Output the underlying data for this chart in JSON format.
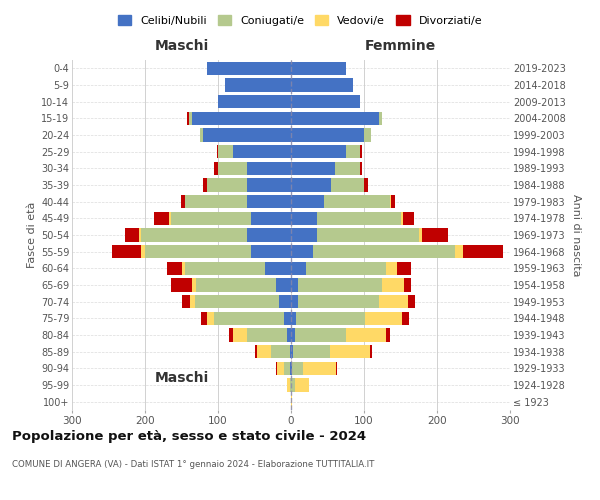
{
  "age_groups": [
    "100+",
    "95-99",
    "90-94",
    "85-89",
    "80-84",
    "75-79",
    "70-74",
    "65-69",
    "60-64",
    "55-59",
    "50-54",
    "45-49",
    "40-44",
    "35-39",
    "30-34",
    "25-29",
    "20-24",
    "15-19",
    "10-14",
    "5-9",
    "0-4"
  ],
  "birth_years": [
    "≤ 1923",
    "1924-1928",
    "1929-1933",
    "1934-1938",
    "1939-1943",
    "1944-1948",
    "1949-1953",
    "1954-1958",
    "1959-1963",
    "1964-1968",
    "1969-1973",
    "1974-1978",
    "1979-1983",
    "1984-1988",
    "1989-1993",
    "1994-1998",
    "1999-2003",
    "2004-2008",
    "2009-2013",
    "2014-2018",
    "2019-2023"
  ],
  "colors": {
    "celibe": "#4472c4",
    "coniugato": "#b5c98e",
    "vedovo": "#ffd966",
    "divorziato": "#c00000"
  },
  "maschi": {
    "celibe": [
      0,
      0,
      1,
      2,
      5,
      10,
      16,
      20,
      35,
      55,
      60,
      55,
      60,
      60,
      60,
      80,
      120,
      135,
      100,
      90,
      115
    ],
    "coniugato": [
      0,
      2,
      8,
      25,
      55,
      95,
      115,
      110,
      110,
      145,
      145,
      110,
      85,
      55,
      40,
      20,
      5,
      5,
      0,
      0,
      0
    ],
    "vedovo": [
      0,
      3,
      10,
      20,
      20,
      10,
      8,
      5,
      5,
      5,
      3,
      2,
      0,
      0,
      0,
      0,
      0,
      0,
      0,
      0,
      0
    ],
    "divorziato": [
      0,
      0,
      2,
      3,
      5,
      8,
      10,
      30,
      20,
      40,
      20,
      20,
      5,
      5,
      5,
      2,
      0,
      2,
      0,
      0,
      0
    ]
  },
  "femmine": {
    "celibe": [
      0,
      0,
      1,
      3,
      5,
      7,
      10,
      10,
      20,
      30,
      35,
      35,
      45,
      55,
      60,
      75,
      100,
      120,
      95,
      85,
      75
    ],
    "coniugato": [
      0,
      5,
      15,
      50,
      70,
      95,
      110,
      115,
      110,
      195,
      140,
      115,
      90,
      45,
      35,
      20,
      10,
      5,
      0,
      0,
      0
    ],
    "vedovo": [
      1,
      20,
      45,
      55,
      55,
      50,
      40,
      30,
      15,
      10,
      5,
      3,
      2,
      0,
      0,
      0,
      0,
      0,
      0,
      0,
      0
    ],
    "divorziato": [
      0,
      0,
      2,
      3,
      5,
      10,
      10,
      10,
      20,
      55,
      35,
      15,
      5,
      5,
      2,
      2,
      0,
      0,
      0,
      0,
      0
    ]
  },
  "title": "Popolazione per età, sesso e stato civile - 2024",
  "subtitle": "COMUNE DI ANGERA (VA) - Dati ISTAT 1° gennaio 2024 - Elaborazione TUTTITALIA.IT",
  "xlabel_left": "Maschi",
  "xlabel_right": "Femmine",
  "ylabel_left": "Fasce di età",
  "ylabel_right": "Anni di nascita",
  "xlim": 300,
  "bg_color": "#ffffff",
  "grid_color": "#cccccc",
  "legend_labels": [
    "Celibi/Nubili",
    "Coniugati/e",
    "Vedovi/e",
    "Divorziati/e"
  ]
}
